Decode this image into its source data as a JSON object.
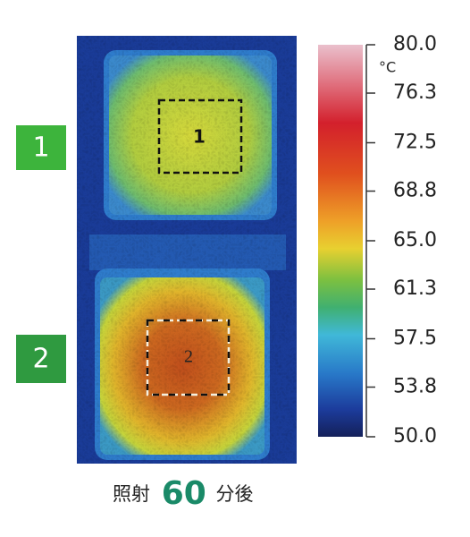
{
  "panels": [
    {
      "badge": "1",
      "region_label": "1"
    },
    {
      "badge": "2",
      "region_label": "2"
    }
  ],
  "colorbar": {
    "unit": "°C",
    "lim": [
      50,
      80
    ],
    "ticks": [
      {
        "value": 80,
        "label": "80.0"
      },
      76.3,
      72.5,
      68.8,
      {
        "value": 65,
        "label": "65.0"
      },
      61.3,
      57.5,
      53.8,
      {
        "value": 50,
        "label": "50.0"
      }
    ]
  },
  "caption": {
    "prefix": "照射",
    "number": "60",
    "suffix": "分後"
  }
}
